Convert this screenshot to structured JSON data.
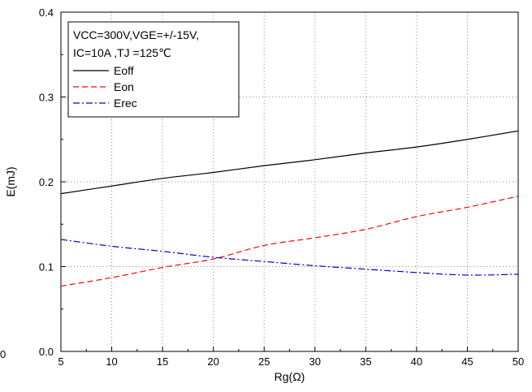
{
  "chart_data": {
    "type": "line",
    "xlabel": "Rg(Ω)",
    "ylabel": "E(mJ)",
    "xlim": [
      5,
      50
    ],
    "ylim": [
      0.0,
      0.4
    ],
    "xticks": [
      5,
      10,
      15,
      20,
      25,
      30,
      35,
      40,
      45,
      50
    ],
    "xtick_labels": [
      "5",
      "10",
      "15",
      "20",
      "25",
      "30",
      "35",
      "40",
      "45",
      "50"
    ],
    "yticks": [
      0.0,
      0.1,
      0.2,
      0.3,
      0.4
    ],
    "ytick_labels": [
      "0.0",
      "0.1",
      "0.2",
      "0.3",
      "0.4"
    ],
    "stray_label": "0",
    "grid": true,
    "legend_position": "top-left",
    "conditions": {
      "line1": "VCC=300V,VGE=+/-15V,",
      "line2": "IC=10A ,TJ =125℃"
    },
    "series": [
      {
        "name": "Eoff",
        "color": "#000000",
        "dash": "solid",
        "x": [
          5,
          10,
          15,
          20,
          25,
          30,
          35,
          40,
          45,
          50
        ],
        "y": [
          0.186,
          0.195,
          0.204,
          0.211,
          0.219,
          0.226,
          0.234,
          0.241,
          0.25,
          0.26
        ]
      },
      {
        "name": "Eon",
        "color": "#ff0000",
        "dash": "dashed",
        "x": [
          5,
          10,
          15,
          20,
          25,
          30,
          35,
          40,
          45,
          50
        ],
        "y": [
          0.077,
          0.087,
          0.099,
          0.109,
          0.125,
          0.134,
          0.144,
          0.159,
          0.17,
          0.183
        ]
      },
      {
        "name": "Erec",
        "color": "#0000cc",
        "dash": "dashdot",
        "x": [
          5,
          10,
          15,
          20,
          25,
          30,
          35,
          40,
          45,
          50
        ],
        "y": [
          0.132,
          0.124,
          0.118,
          0.111,
          0.106,
          0.101,
          0.097,
          0.093,
          0.09,
          0.091
        ]
      }
    ]
  }
}
